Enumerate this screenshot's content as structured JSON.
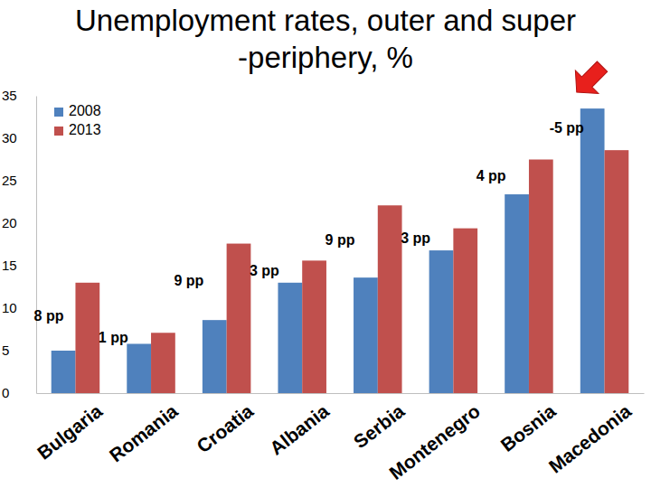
{
  "chart_data": {
    "type": "bar",
    "title": "Unemployment rates, outer and super -periphery, %",
    "categories": [
      "Bulgaria",
      "Romania",
      "Croatia",
      "Albania",
      "Serbia",
      "Montenegro",
      "Bosnia",
      "Macedonia"
    ],
    "series": [
      {
        "name": "2008",
        "color": "#4f81bd",
        "values": [
          5.0,
          5.8,
          8.6,
          13.0,
          13.6,
          16.8,
          23.4,
          33.5
        ]
      },
      {
        "name": "2013",
        "color": "#c0504d",
        "values": [
          13.0,
          7.1,
          17.6,
          15.6,
          22.1,
          19.4,
          27.5,
          28.6
        ]
      }
    ],
    "annotations": [
      "8 pp",
      "1 pp",
      "9 pp",
      "3 pp",
      "9 pp",
      "3 pp",
      "4 pp",
      "-5 pp"
    ],
    "ylim": [
      0,
      35
    ],
    "yticks": [
      0,
      5,
      10,
      15,
      20,
      25,
      30,
      35
    ],
    "grid": false,
    "legend": "top-left"
  }
}
